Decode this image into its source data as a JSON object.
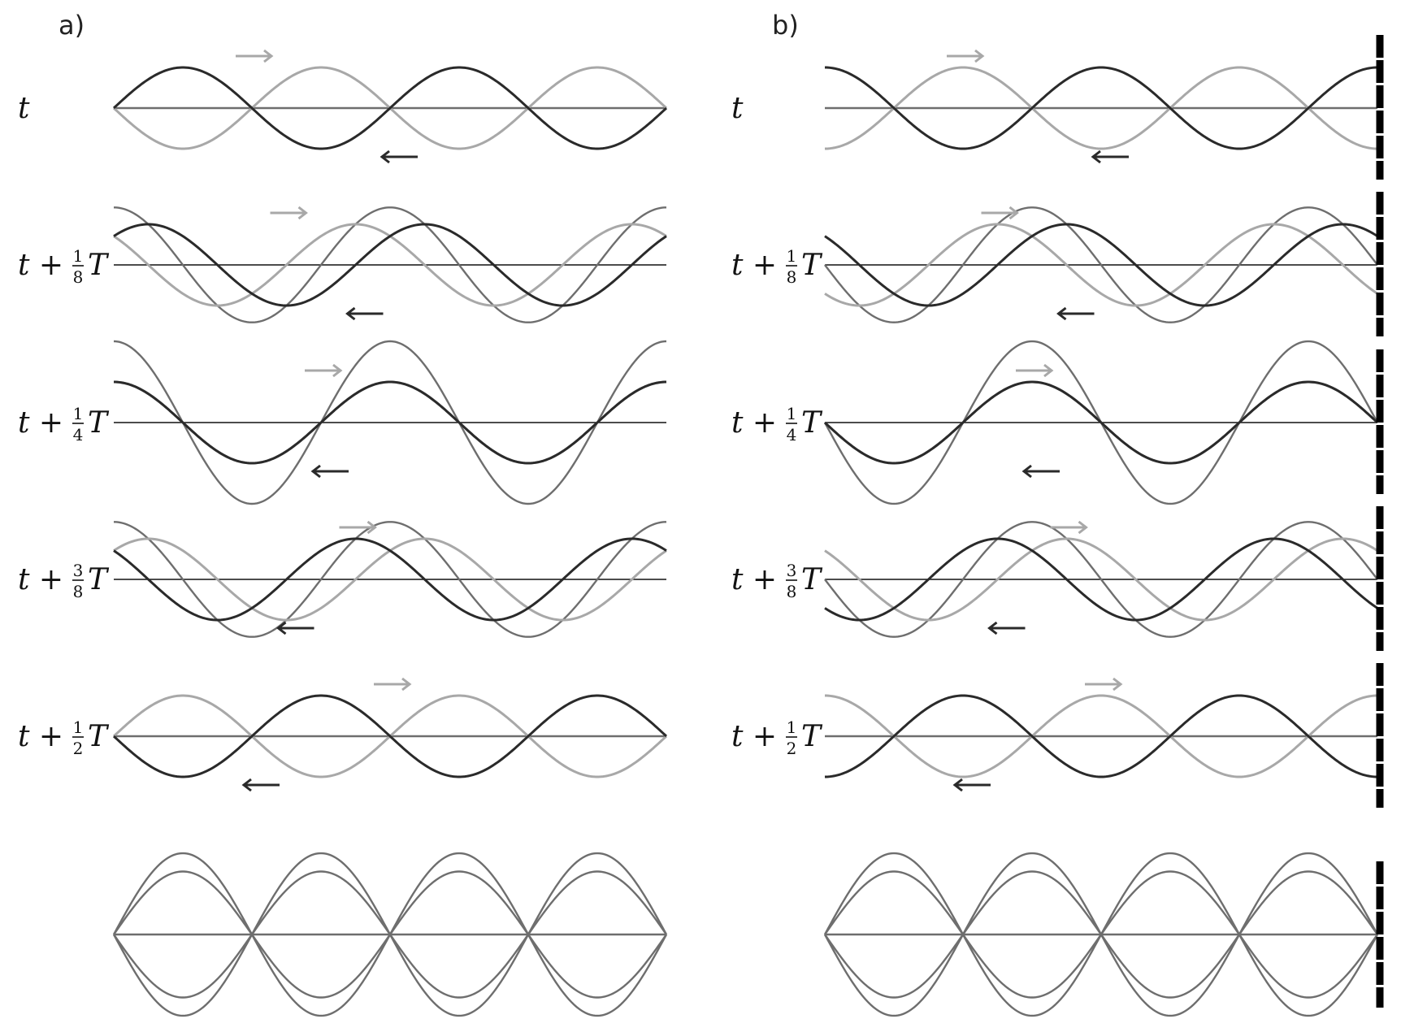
{
  "panels": [
    {
      "letter": "a)",
      "wall": false,
      "rows": [
        {
          "label": {
            "pre": "t",
            "num": "",
            "den": "",
            "post": ""
          },
          "phase": 0.0
        },
        {
          "label": {
            "pre": "t + ",
            "num": "1",
            "den": "8",
            "post": "T"
          },
          "phase": 0.125
        },
        {
          "label": {
            "pre": "t + ",
            "num": "1",
            "den": "4",
            "post": "T"
          },
          "phase": 0.25
        },
        {
          "label": {
            "pre": "t + ",
            "num": "3",
            "den": "8",
            "post": "T"
          },
          "phase": 0.375
        },
        {
          "label": {
            "pre": "t + ",
            "num": "1",
            "den": "2",
            "post": "T"
          },
          "phase": 0.5
        }
      ]
    },
    {
      "letter": "b)",
      "wall": true,
      "rows": [
        {
          "label": {
            "pre": "t",
            "num": "",
            "den": "",
            "post": ""
          },
          "phase": 0.0
        },
        {
          "label": {
            "pre": "t + ",
            "num": "1",
            "den": "8",
            "post": "T"
          },
          "phase": 0.125
        },
        {
          "label": {
            "pre": "t + ",
            "num": "1",
            "den": "4",
            "post": "T"
          },
          "phase": 0.25
        },
        {
          "label": {
            "pre": "t + ",
            "num": "3",
            "den": "8",
            "post": "T"
          },
          "phase": 0.375
        },
        {
          "label": {
            "pre": "t + ",
            "num": "1",
            "den": "2",
            "post": "T"
          },
          "phase": 0.5
        }
      ]
    }
  ],
  "colors": {
    "incident": "#a8a8a8",
    "reflected": "#2a2a2a",
    "sum": "#6e6e6e",
    "axis": "#111111",
    "wall": "#000000"
  }
}
